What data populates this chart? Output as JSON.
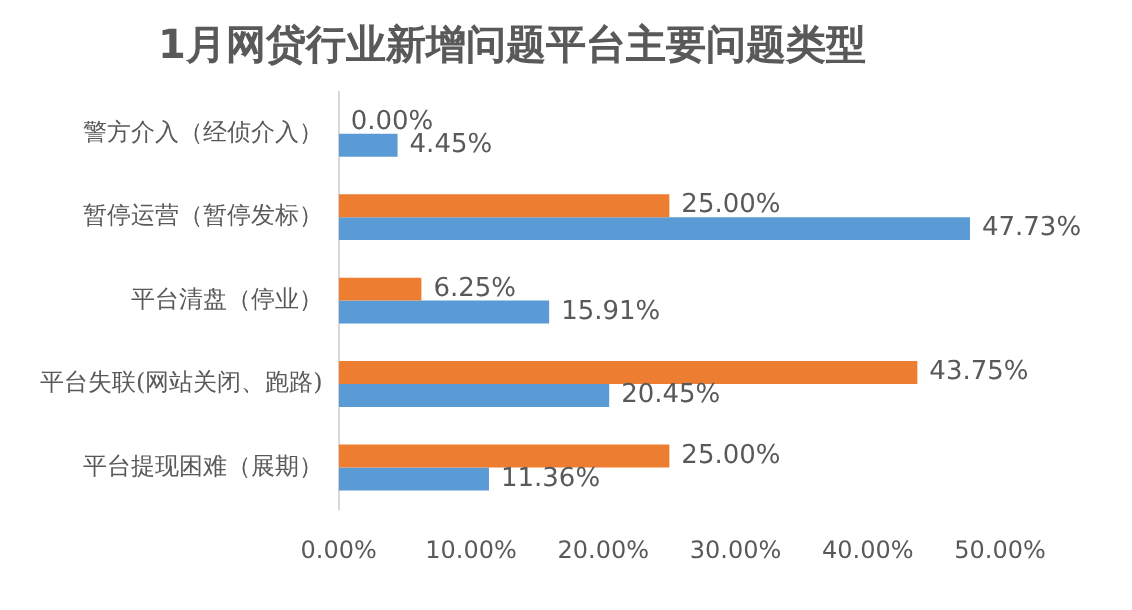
{
  "chart_data": {
    "type": "bar",
    "orientation": "horizontal",
    "title": "1月网贷行业新增问题平台主要问题类型",
    "categories": [
      "警方介入（经侦介入）",
      "暂停运营（暂停发标）",
      "平台清盘（停业）",
      "平台失联(网站关闭、跑路)",
      "平台提现困难（展期）"
    ],
    "series": [
      {
        "color": "#ed7d31",
        "values": [
          0,
          25,
          6.25,
          43.75,
          25
        ],
        "value_labels": [
          "0.00%",
          "25.00%",
          "6.25%",
          "43.75%",
          "25.00%"
        ]
      },
      {
        "color": "#5b9bd5",
        "values": [
          4.45,
          47.73,
          15.91,
          20.45,
          11.36
        ],
        "value_labels": [
          "4.45%",
          "47.73%",
          "15.91%",
          "20.45%",
          "11.36%"
        ]
      }
    ],
    "xlim": [
      0,
      50
    ],
    "xticks": [
      {
        "value": 0,
        "label": "0.00%"
      },
      {
        "value": 10,
        "label": "10.00%"
      },
      {
        "value": 20,
        "label": "20.00%"
      },
      {
        "value": 30,
        "label": "30.00%"
      },
      {
        "value": 40,
        "label": "40.00%"
      },
      {
        "value": 50,
        "label": "50.00%"
      }
    ],
    "grid": false,
    "legend": false
  }
}
